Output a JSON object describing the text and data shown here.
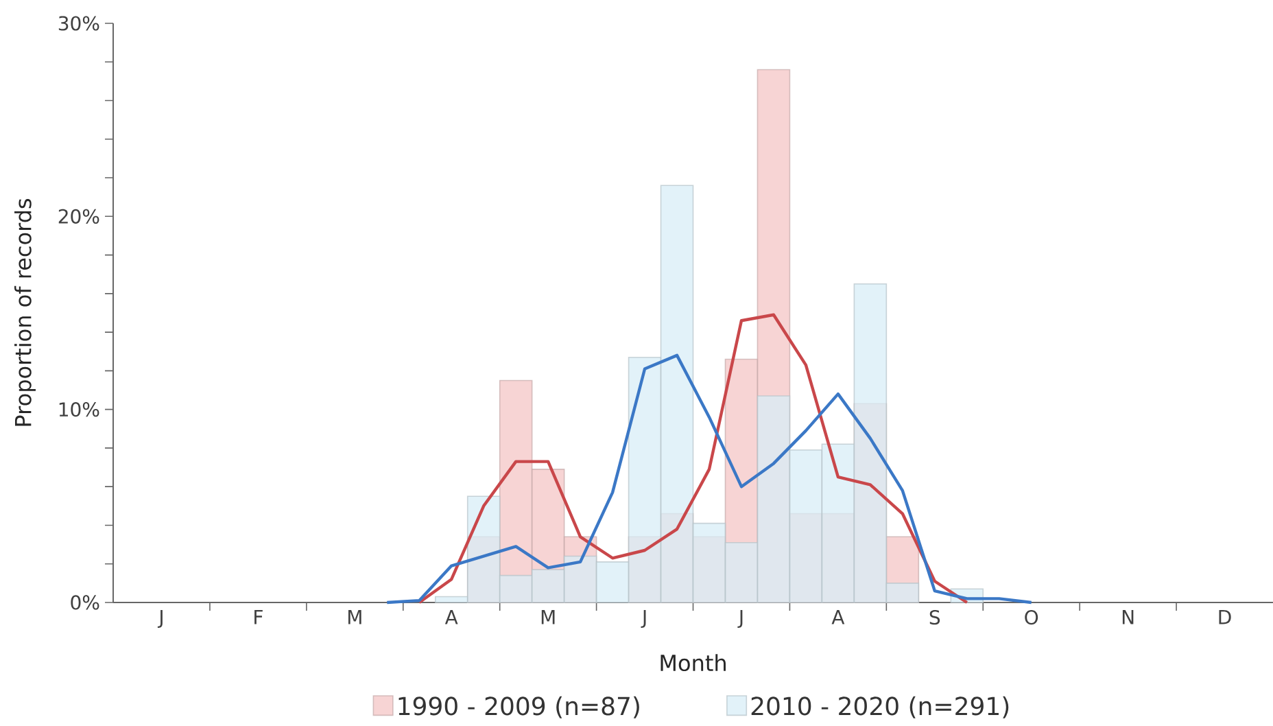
{
  "chart_data": {
    "type": "bar",
    "xlabel": "Month",
    "ylabel": "Proportion of records",
    "categories": [
      null,
      "J",
      null,
      null,
      "F",
      null,
      null,
      "M",
      null,
      null,
      "A",
      null,
      null,
      "M",
      null,
      null,
      "J",
      null,
      null,
      "J",
      null,
      null,
      "A",
      null,
      null,
      "S",
      null,
      null,
      "O",
      null,
      null,
      "N",
      null,
      null,
      "D",
      null
    ],
    "series": [
      {
        "name": "1990 - 2009 (n=87)",
        "color": "#f4c6c6",
        "values": [
          null,
          null,
          null,
          null,
          null,
          null,
          null,
          null,
          null,
          null,
          null,
          3.4,
          11.5,
          6.9,
          3.4,
          null,
          3.4,
          4.6,
          3.4,
          12.6,
          27.6,
          4.6,
          4.6,
          10.3,
          3.4,
          null,
          null,
          null,
          null,
          null,
          null,
          null,
          null,
          null,
          null,
          null
        ]
      },
      {
        "name": "2010 - 2020 (n=291)",
        "color": "#d8eef7",
        "values": [
          null,
          null,
          null,
          null,
          null,
          null,
          null,
          null,
          null,
          null,
          0.3,
          5.5,
          1.4,
          1.7,
          2.4,
          2.1,
          12.7,
          21.6,
          4.1,
          3.1,
          10.7,
          7.9,
          8.2,
          16.5,
          1.0,
          null,
          0.7,
          null,
          null,
          null,
          null,
          null,
          null,
          null,
          null,
          null
        ]
      },
      {
        "type": "line",
        "color": "#c9474a",
        "values": [
          null,
          null,
          null,
          null,
          null,
          null,
          null,
          null,
          null,
          0,
          1.2,
          5.0,
          7.3,
          7.3,
          3.4,
          2.3,
          2.7,
          3.8,
          6.9,
          14.6,
          14.9,
          12.3,
          6.5,
          6.1,
          4.6,
          1.1,
          0,
          null,
          null,
          null,
          null,
          null,
          null,
          null,
          null,
          null
        ]
      },
      {
        "type": "line",
        "color": "#3b78c6",
        "values": [
          null,
          null,
          null,
          null,
          null,
          null,
          null,
          null,
          0,
          0.1,
          1.9,
          2.4,
          2.9,
          1.8,
          2.1,
          5.7,
          12.1,
          12.8,
          9.6,
          6.0,
          7.2,
          8.9,
          10.8,
          8.5,
          5.8,
          0.6,
          0.2,
          0.2,
          0,
          null,
          null,
          null,
          null,
          null,
          null,
          null
        ]
      }
    ],
    "ylim": [
      0,
      30
    ],
    "yticks": [
      {
        "value": 0,
        "label": "0%"
      },
      {
        "value": 10,
        "label": "10%"
      },
      {
        "value": 20,
        "label": "20%"
      },
      {
        "value": 30,
        "label": "30%"
      }
    ],
    "legend": "bottom"
  }
}
